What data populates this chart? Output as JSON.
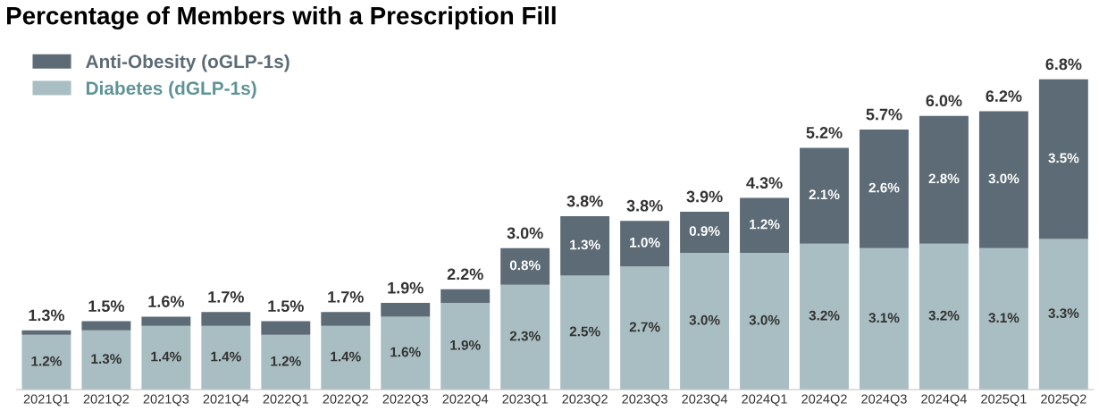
{
  "chart_data": {
    "type": "bar",
    "title": "Percentage of Members with a Prescription Fill",
    "stacked": true,
    "legend": "top left",
    "categories": [
      "2021Q1",
      "2021Q2",
      "2021Q3",
      "2021Q4",
      "2022Q1",
      "2022Q2",
      "2022Q3",
      "2022Q4",
      "2023Q1",
      "2023Q2",
      "2023Q3",
      "2023Q4",
      "2024Q1",
      "2024Q2",
      "2024Q3",
      "2024Q4",
      "2025Q1",
      "2025Q2"
    ],
    "series": [
      {
        "name": "Diabetes (dGLP-1s)",
        "color": "#a9bec2",
        "values": [
          1.2,
          1.3,
          1.4,
          1.4,
          1.2,
          1.4,
          1.6,
          1.9,
          2.3,
          2.5,
          2.7,
          3.0,
          3.0,
          3.2,
          3.1,
          3.2,
          3.1,
          3.3
        ],
        "value_labels": [
          "1.2%",
          "1.3%",
          "1.4%",
          "1.4%",
          "1.2%",
          "1.4%",
          "1.6%",
          "1.9%",
          "2.3%",
          "2.5%",
          "2.7%",
          "3.0%",
          "3.0%",
          "3.2%",
          "3.1%",
          "3.2%",
          "3.1%",
          "3.3%"
        ]
      },
      {
        "name": "Anti-Obesity (oGLP-1s)",
        "color": "#5c6b75",
        "values": [
          0.1,
          0.2,
          0.2,
          0.3,
          0.3,
          0.3,
          0.3,
          0.3,
          0.8,
          1.3,
          1.0,
          0.9,
          1.2,
          2.1,
          2.6,
          2.8,
          3.0,
          3.5
        ],
        "value_labels": [
          null,
          null,
          null,
          null,
          null,
          null,
          null,
          null,
          "0.8%",
          "1.3%",
          "1.0%",
          "0.9%",
          "1.2%",
          "2.1%",
          "2.6%",
          "2.8%",
          "3.0%",
          "3.5%"
        ]
      }
    ],
    "totals": [
      "1.3%",
      "1.5%",
      "1.6%",
      "1.7%",
      "1.5%",
      "1.7%",
      "1.9%",
      "2.2%",
      "3.0%",
      "3.8%",
      "3.8%",
      "3.9%",
      "4.3%",
      "5.2%",
      "5.7%",
      "6.0%",
      "6.2%",
      "6.8%"
    ]
  }
}
